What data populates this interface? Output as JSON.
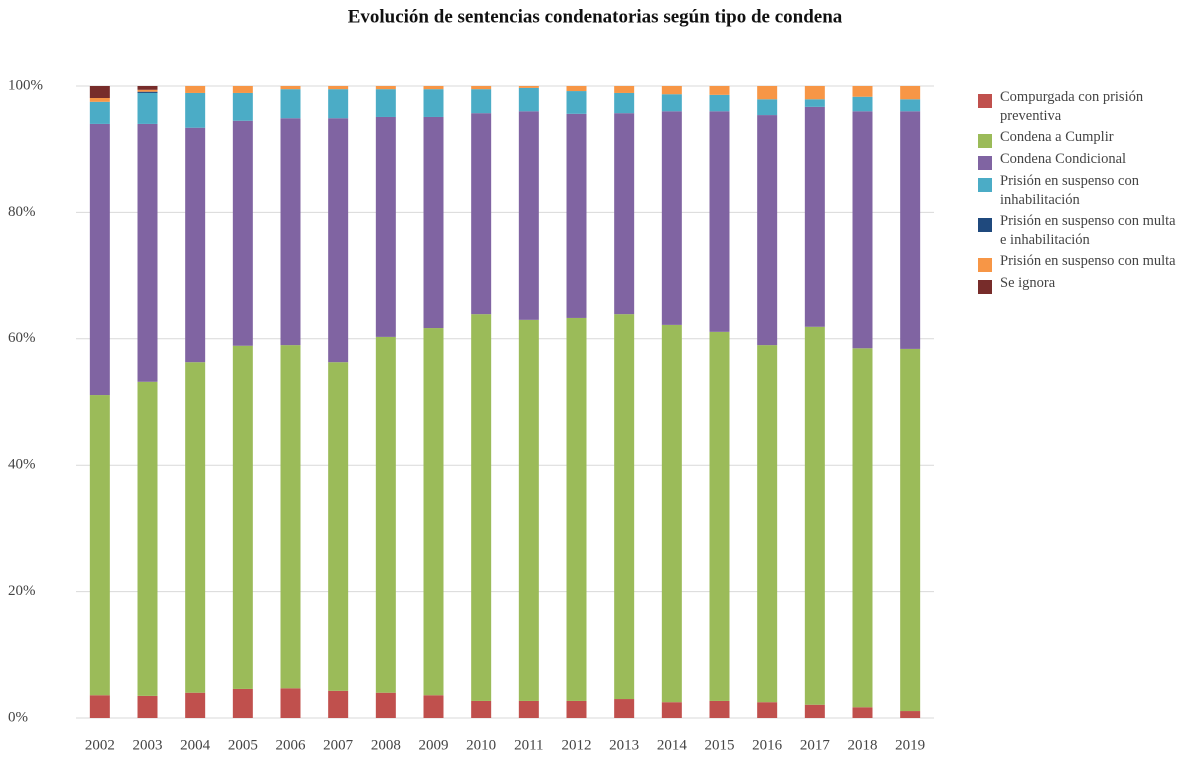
{
  "chart_data": {
    "type": "stacked-bar",
    "title": "Evolución de sentencias condenatorias según tipo de condena",
    "categories": [
      "2002",
      "2003",
      "2004",
      "2005",
      "2006",
      "2007",
      "2008",
      "2009",
      "2010",
      "2011",
      "2012",
      "2013",
      "2014",
      "2015",
      "2016",
      "2017",
      "2018",
      "2019"
    ],
    "series": [
      {
        "name": "Compurgada con prisión preventiva",
        "color": "#c0504d",
        "values": [
          3.6,
          3.5,
          4.0,
          4.6,
          4.7,
          4.3,
          4.0,
          3.6,
          2.7,
          2.7,
          2.7,
          3.0,
          2.5,
          2.7,
          2.5,
          2.1,
          1.7,
          1.1
        ]
      },
      {
        "name": "Condena a Cumplir",
        "color": "#9bbb59",
        "values": [
          47.5,
          49.7,
          52.3,
          54.3,
          54.3,
          52.0,
          56.3,
          58.1,
          61.2,
          60.3,
          60.6,
          60.9,
          59.7,
          58.4,
          56.5,
          59.8,
          56.8,
          57.3
        ]
      },
      {
        "name": "Condena Condicional",
        "color": "#8064a2",
        "values": [
          42.9,
          40.8,
          37.1,
          35.6,
          35.9,
          38.6,
          34.8,
          33.4,
          31.8,
          33.0,
          32.3,
          31.8,
          33.8,
          34.9,
          36.4,
          34.8,
          37.5,
          37.6
        ]
      },
      {
        "name": "Prisión en suspenso con inhabilitación",
        "color": "#4bacc6",
        "values": [
          3.5,
          4.9,
          5.5,
          4.4,
          4.6,
          4.6,
          4.4,
          4.4,
          3.8,
          3.7,
          3.6,
          3.2,
          2.7,
          2.6,
          2.5,
          1.2,
          2.3,
          1.9
        ]
      },
      {
        "name": "Prisión en suspenso con multa e inhabilitación",
        "color": "#1f497d",
        "values": [
          0,
          0.2,
          0,
          0,
          0,
          0,
          0,
          0,
          0,
          0,
          0,
          0,
          0,
          0,
          0,
          0,
          0,
          0
        ]
      },
      {
        "name": "Prisión en suspenso con multa",
        "color": "#f79646",
        "values": [
          0.6,
          0.3,
          1.1,
          1.1,
          0.5,
          0.5,
          0.5,
          0.5,
          0.5,
          0.3,
          0.8,
          1.1,
          1.3,
          1.4,
          2.1,
          2.1,
          1.7,
          2.1
        ]
      },
      {
        "name": "Se ignora",
        "color": "#772c2a",
        "values": [
          1.9,
          0.6,
          0,
          0,
          0,
          0,
          0,
          0,
          0,
          0,
          0,
          0,
          0,
          0,
          0,
          0,
          0,
          0
        ]
      }
    ],
    "ylim": [
      0,
      100
    ],
    "yticks": [
      {
        "value": 0,
        "label": "0%"
      },
      {
        "value": 20,
        "label": "20%"
      },
      {
        "value": 40,
        "label": "40%"
      },
      {
        "value": 60,
        "label": "60%"
      },
      {
        "value": 80,
        "label": "80%"
      },
      {
        "value": 100,
        "label": "100%"
      }
    ],
    "grid": true
  }
}
